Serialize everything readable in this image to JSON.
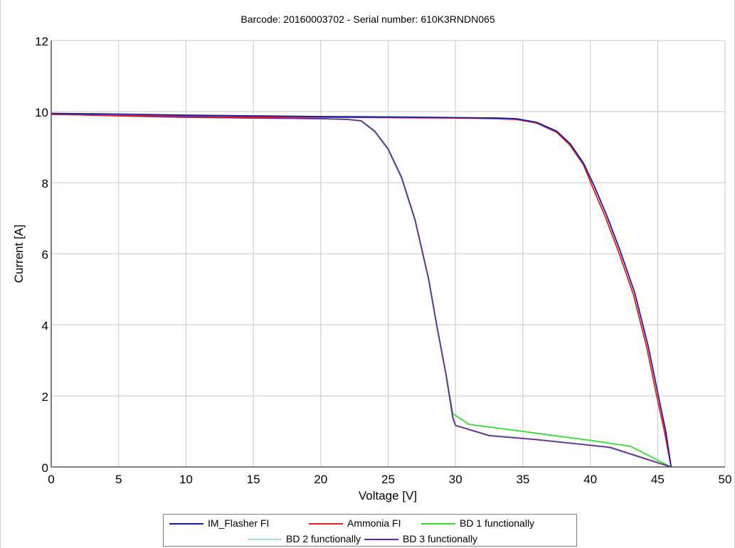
{
  "chart_data": {
    "type": "line",
    "title": "Barcode: 20160003702 - Serial number: 610K3RNDN065",
    "xlabel": "Voltage [V]",
    "ylabel": "Current [A]",
    "xlim": [
      0,
      50
    ],
    "ylim": [
      0,
      12
    ],
    "xticks": [
      "0",
      "5",
      "10",
      "15",
      "20",
      "25",
      "30",
      "35",
      "40",
      "45",
      "50"
    ],
    "yticks": [
      "0",
      "2",
      "4",
      "6",
      "8",
      "10",
      "12"
    ],
    "grid": true,
    "legend_position": "bottom",
    "series": [
      {
        "name": "IM_Flasher FI",
        "color": "#1a1aa8",
        "points": [
          [
            0,
            9.95
          ],
          [
            5,
            9.93
          ],
          [
            10,
            9.9
          ],
          [
            15,
            9.88
          ],
          [
            20,
            9.86
          ],
          [
            25,
            9.85
          ],
          [
            30,
            9.83
          ],
          [
            33,
            9.82
          ],
          [
            34.5,
            9.8
          ],
          [
            36,
            9.7
          ],
          [
            37.5,
            9.45
          ],
          [
            38.5,
            9.1
          ],
          [
            39.5,
            8.55
          ],
          [
            40.3,
            7.9
          ],
          [
            41.2,
            7.1
          ],
          [
            42.2,
            6.1
          ],
          [
            43.3,
            4.9
          ],
          [
            44.3,
            3.4
          ],
          [
            45,
            2.1
          ],
          [
            45.6,
            1.0
          ],
          [
            46,
            0.0
          ]
        ]
      },
      {
        "name": "Ammonia FI",
        "color": "#e02020",
        "points": [
          [
            0,
            9.92
          ],
          [
            5,
            9.89
          ],
          [
            10,
            9.87
          ],
          [
            15,
            9.85
          ],
          [
            20,
            9.84
          ],
          [
            25,
            9.83
          ],
          [
            30,
            9.82
          ],
          [
            33,
            9.8
          ],
          [
            34.5,
            9.78
          ],
          [
            36,
            9.68
          ],
          [
            37.5,
            9.42
          ],
          [
            38.5,
            9.05
          ],
          [
            39.5,
            8.5
          ],
          [
            40.2,
            7.85
          ],
          [
            41.1,
            7.05
          ],
          [
            42.1,
            6.05
          ],
          [
            43.2,
            4.85
          ],
          [
            44.2,
            3.35
          ],
          [
            44.9,
            2.05
          ],
          [
            45.5,
            1.0
          ],
          [
            46,
            0.0
          ]
        ]
      },
      {
        "name": "BD 1 functionally",
        "color": "#33dd33",
        "points": [
          [
            0,
            9.93
          ],
          [
            5,
            9.88
          ],
          [
            10,
            9.84
          ],
          [
            15,
            9.82
          ],
          [
            20,
            9.8
          ],
          [
            22,
            9.78
          ],
          [
            23,
            9.74
          ],
          [
            24,
            9.45
          ],
          [
            25,
            8.95
          ],
          [
            26,
            8.15
          ],
          [
            27,
            6.95
          ],
          [
            28,
            5.3
          ],
          [
            28.6,
            4.0
          ],
          [
            29.3,
            2.6
          ],
          [
            29.8,
            1.5
          ],
          [
            31,
            1.2
          ],
          [
            35,
            1.0
          ],
          [
            40,
            0.75
          ],
          [
            43,
            0.58
          ],
          [
            46,
            0.0
          ]
        ]
      },
      {
        "name": "BD 2 functionally",
        "color": "#a8dde8",
        "points": [
          [
            0,
            9.94
          ],
          [
            5,
            9.89
          ],
          [
            10,
            9.85
          ],
          [
            15,
            9.82
          ],
          [
            20,
            9.8
          ],
          [
            22,
            9.78
          ],
          [
            23,
            9.73
          ],
          [
            24,
            9.42
          ],
          [
            25,
            8.9
          ],
          [
            26,
            8.1
          ],
          [
            27,
            6.9
          ],
          [
            28,
            5.25
          ],
          [
            28.6,
            3.95
          ],
          [
            29.3,
            2.55
          ],
          [
            29.8,
            1.3
          ],
          [
            30,
            1.17
          ],
          [
            32.5,
            0.9
          ],
          [
            36,
            0.78
          ],
          [
            41,
            0.58
          ],
          [
            46,
            0.0
          ]
        ]
      },
      {
        "name": "BD 3 functionally",
        "color": "#6a2a8a",
        "points": [
          [
            0,
            9.93
          ],
          [
            5,
            9.88
          ],
          [
            10,
            9.84
          ],
          [
            15,
            9.82
          ],
          [
            20,
            9.8
          ],
          [
            22,
            9.78
          ],
          [
            23,
            9.74
          ],
          [
            24,
            9.45
          ],
          [
            25,
            8.95
          ],
          [
            26,
            8.15
          ],
          [
            27,
            6.95
          ],
          [
            28,
            5.3
          ],
          [
            28.6,
            4.0
          ],
          [
            29.3,
            2.6
          ],
          [
            29.8,
            1.4
          ],
          [
            30,
            1.17
          ],
          [
            32.5,
            0.88
          ],
          [
            36,
            0.77
          ],
          [
            41.5,
            0.55
          ],
          [
            46,
            0.0
          ]
        ]
      }
    ]
  }
}
